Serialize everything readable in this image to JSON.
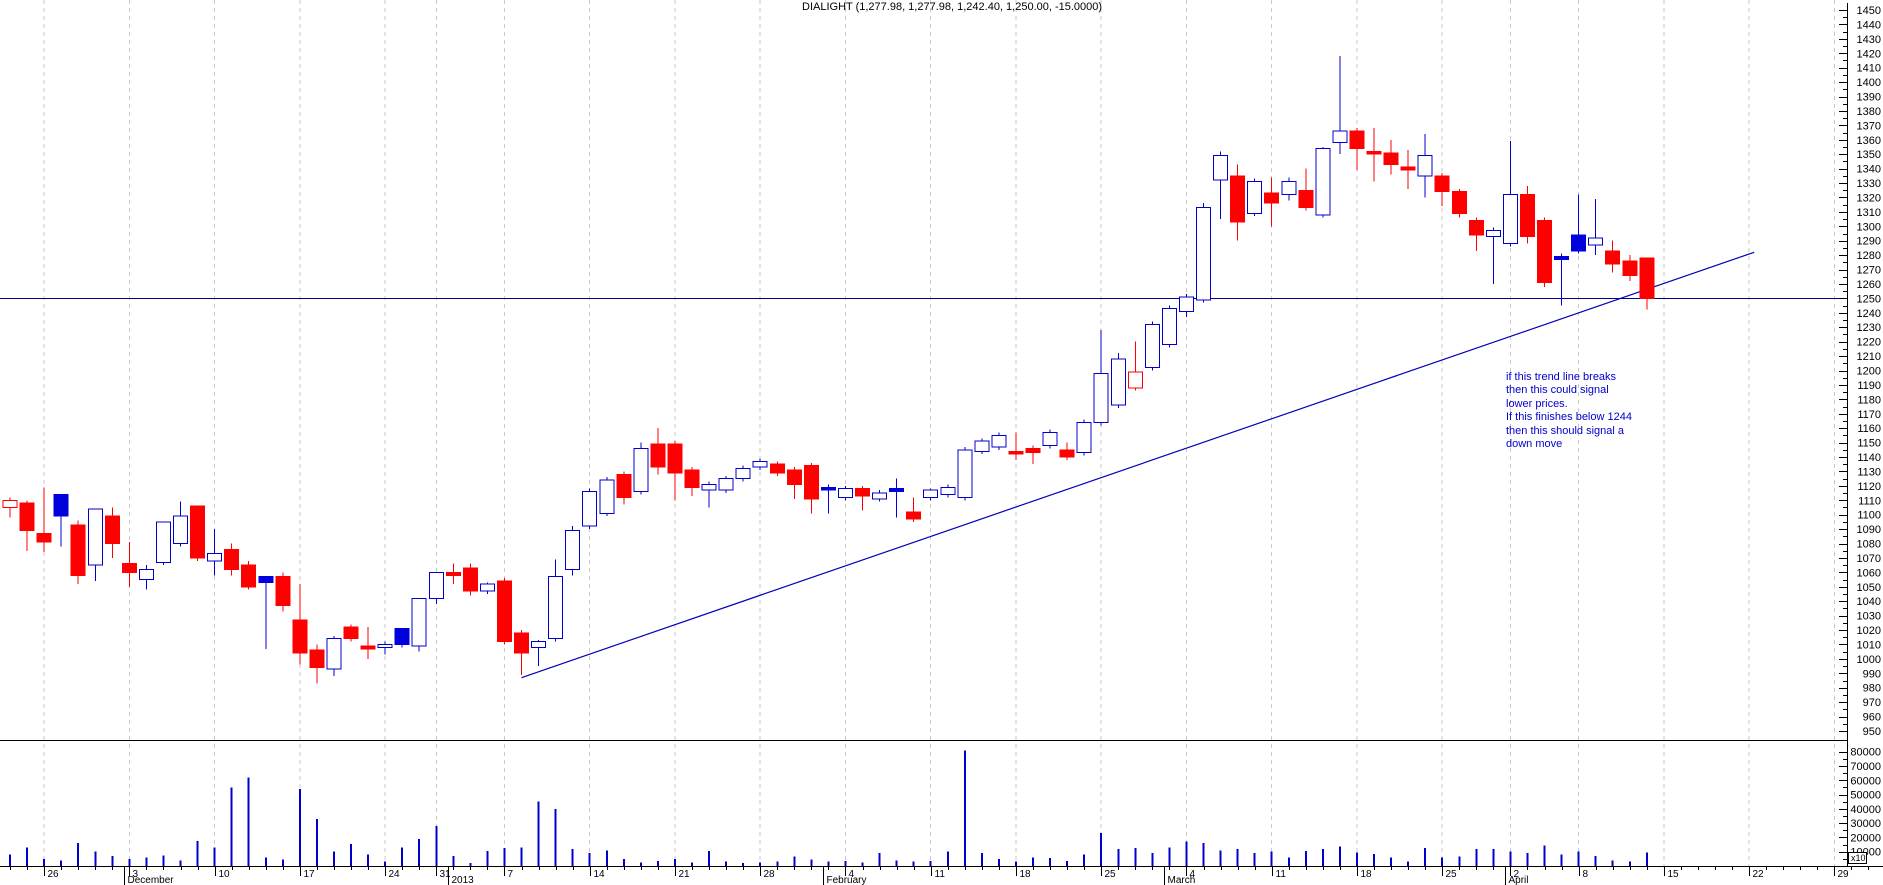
{
  "window": {
    "title": "DIALIGHT (1,277.98, 1,277.98, 1,242.40, 1,250.00, -15.0000)"
  },
  "annotation": {
    "color": "#0000cc",
    "lines": [
      "if this trend line breaks",
      "then this could signal",
      "lower prices.",
      "If this finishes below 1244",
      "then this should signal a",
      "down move"
    ]
  },
  "chart_data": {
    "type": "candlestick",
    "instrument": "DIALIGHT",
    "quote": {
      "open": "1,277.98",
      "high": "1,277.98",
      "low": "1,242.40",
      "close": "1,250.00",
      "change": "-15.0000"
    },
    "price_axis": {
      "min": 950,
      "max": 1450,
      "label_step": 10,
      "minor_step": 5
    },
    "volume_axis": {
      "min": 10000,
      "max": 80000,
      "label_step": 10000,
      "multiplier_label": "x10"
    },
    "horizontal_line": {
      "price": 1250
    },
    "trend_line": {
      "from": {
        "index": 30,
        "price": 987
      },
      "to": {
        "index": 102.3,
        "price": 1282
      }
    },
    "colors": {
      "up": "#0000cc",
      "down": "#ff0000",
      "blue_fill": "#0000dd",
      "grid": "#c9c9c9",
      "hline": "#000090",
      "trend": "#0000bb",
      "volume_bar": "#0000cc",
      "axis": "#000000",
      "annotation": "#0000cc"
    },
    "candle_fields": [
      "date",
      "open",
      "high",
      "low",
      "close",
      "style",
      "volume"
    ],
    "candle_styles": {
      "u": "up-hollow-blue",
      "d": "down-solid-red",
      "b": "solid-blue",
      "rh": "hollow-red"
    },
    "candles": [
      [
        "2012-11-22",
        1110,
        1112,
        1098,
        1105,
        "rh",
        8000
      ],
      [
        "2012-11-23",
        1108,
        1110,
        1075,
        1089,
        "d",
        13000
      ],
      [
        "2012-11-26",
        1087,
        1119,
        1074,
        1081,
        "d",
        5000
      ],
      [
        "2012-11-27",
        1099,
        1114,
        1078,
        1114,
        "b",
        4000
      ],
      [
        "2012-11-28",
        1093,
        1096,
        1052,
        1058,
        "d",
        16000
      ],
      [
        "2012-11-29",
        1065,
        1104,
        1054,
        1104,
        "u",
        10000
      ],
      [
        "2012-11-30",
        1099,
        1105,
        1070,
        1080,
        "d",
        7000
      ],
      [
        "2012-12-03",
        1066,
        1081,
        1050,
        1060,
        "d",
        5000
      ],
      [
        "2012-12-04",
        1055,
        1065,
        1048,
        1062,
        "u",
        6000
      ],
      [
        "2012-12-05",
        1067,
        1095,
        1065,
        1095,
        "u",
        7500
      ],
      [
        "2012-12-06",
        1080,
        1109,
        1078,
        1099,
        "u",
        4000
      ],
      [
        "2012-12-07",
        1106,
        1106,
        1068,
        1070,
        "d",
        17500
      ],
      [
        "2012-12-10",
        1068,
        1090,
        1058,
        1073,
        "u",
        13000
      ],
      [
        "2012-12-11",
        1076,
        1080,
        1058,
        1062,
        "d",
        55000
      ],
      [
        "2012-12-12",
        1065,
        1068,
        1048,
        1050,
        "d",
        62000
      ],
      [
        "2012-12-13",
        1053,
        1057,
        1007,
        1057,
        "b",
        6000
      ],
      [
        "2012-12-14",
        1057,
        1060,
        1033,
        1037,
        "d",
        4500
      ],
      [
        "2012-12-17",
        1027,
        1052,
        996,
        1004,
        "d",
        54000
      ],
      [
        "2012-12-18",
        1006,
        1010,
        983,
        994,
        "d",
        33000
      ],
      [
        "2012-12-19",
        993,
        1016,
        988,
        1014,
        "u",
        10000
      ],
      [
        "2012-12-20",
        1022,
        1024,
        1012,
        1014,
        "d",
        15500
      ],
      [
        "2012-12-21",
        1009,
        1022,
        1000,
        1007,
        "d",
        8000
      ],
      [
        "2012-12-24",
        1008,
        1012,
        1003,
        1010,
        "u",
        3000
      ],
      [
        "2012-12-27",
        1010,
        1021,
        1008,
        1021,
        "b",
        13000
      ],
      [
        "2012-12-28",
        1009,
        1042,
        1005,
        1042,
        "u",
        19000
      ],
      [
        "2012-12-31",
        1042,
        1060,
        1038,
        1060,
        "u",
        28000
      ],
      [
        "2013-01-02",
        1060,
        1066,
        1052,
        1058,
        "d",
        7000
      ],
      [
        "2013-01-03",
        1063,
        1066,
        1044,
        1047,
        "d",
        2000
      ],
      [
        "2013-01-04",
        1047,
        1053,
        1045,
        1052,
        "u",
        10500
      ],
      [
        "2013-01-07",
        1054,
        1056,
        1010,
        1012,
        "d",
        12500
      ],
      [
        "2013-01-08",
        1018,
        1020,
        989,
        1004,
        "d",
        13000
      ],
      [
        "2013-01-09",
        1008,
        1013,
        995,
        1012,
        "u",
        45000
      ],
      [
        "2013-01-10",
        1014,
        1069,
        1012,
        1057,
        "u",
        40000
      ],
      [
        "2013-01-11",
        1062,
        1092,
        1058,
        1089,
        "u",
        12000
      ],
      [
        "2013-01-14",
        1092,
        1118,
        1090,
        1116,
        "u",
        9000
      ],
      [
        "2013-01-15",
        1101,
        1126,
        1099,
        1124,
        "u",
        11000
      ],
      [
        "2013-01-16",
        1128,
        1130,
        1107,
        1112,
        "d",
        5000
      ],
      [
        "2013-01-17",
        1116,
        1150,
        1114,
        1146,
        "u",
        2500
      ],
      [
        "2013-01-18",
        1149,
        1160,
        1128,
        1133,
        "d",
        3500
      ],
      [
        "2013-01-21",
        1149,
        1151,
        1110,
        1129,
        "d",
        5000
      ],
      [
        "2013-01-22",
        1131,
        1133,
        1113,
        1119,
        "d",
        2500
      ],
      [
        "2013-01-23",
        1117,
        1123,
        1105,
        1121,
        "u",
        10500
      ],
      [
        "2013-01-24",
        1117,
        1127,
        1115,
        1125,
        "u",
        3000
      ],
      [
        "2013-01-25",
        1125,
        1134,
        1123,
        1132,
        "u",
        2000
      ],
      [
        "2013-01-28",
        1133,
        1139,
        1131,
        1137,
        "u",
        2500
      ],
      [
        "2013-01-29",
        1135,
        1137,
        1127,
        1129,
        "d",
        3000
      ],
      [
        "2013-01-30",
        1131,
        1133,
        1111,
        1121,
        "d",
        6500
      ],
      [
        "2013-01-31",
        1134,
        1136,
        1101,
        1111,
        "d",
        4500
      ],
      [
        "2013-02-01",
        1119,
        1121,
        1101,
        1117,
        "b",
        3000
      ],
      [
        "2013-02-04",
        1112,
        1120,
        1110,
        1118,
        "u",
        3500
      ],
      [
        "2013-02-05",
        1118,
        1120,
        1103,
        1113,
        "d",
        2500
      ],
      [
        "2013-02-06",
        1111,
        1117,
        1109,
        1115,
        "u",
        9000
      ],
      [
        "2013-02-07",
        1118,
        1125,
        1098,
        1116,
        "b",
        4000
      ],
      [
        "2013-02-08",
        1102,
        1112,
        1095,
        1097,
        "d",
        3000
      ],
      [
        "2013-02-11",
        1112,
        1118,
        1110,
        1117,
        "u",
        3500
      ],
      [
        "2013-02-12",
        1114,
        1121,
        1112,
        1119,
        "u",
        10000
      ],
      [
        "2013-02-13",
        1112,
        1147,
        1110,
        1145,
        "u",
        81000
      ],
      [
        "2013-02-14",
        1144,
        1153,
        1142,
        1151,
        "u",
        9000
      ],
      [
        "2013-02-15",
        1147,
        1157,
        1145,
        1155,
        "u",
        5000
      ],
      [
        "2013-02-18",
        1144,
        1157,
        1138,
        1142,
        "d",
        3000
      ],
      [
        "2013-02-19",
        1146,
        1148,
        1135,
        1143,
        "d",
        6000
      ],
      [
        "2013-02-20",
        1148,
        1159,
        1146,
        1157,
        "u",
        5500
      ],
      [
        "2013-02-21",
        1145,
        1150,
        1138,
        1140,
        "d",
        3500
      ],
      [
        "2013-02-22",
        1143,
        1166,
        1141,
        1164,
        "u",
        8000
      ],
      [
        "2013-02-25",
        1164,
        1228,
        1162,
        1198,
        "u",
        23000
      ],
      [
        "2013-02-26",
        1176,
        1212,
        1174,
        1208,
        "u",
        12000
      ],
      [
        "2013-02-27",
        1199,
        1220,
        1186,
        1188,
        "rh",
        12500
      ],
      [
        "2013-02-28",
        1202,
        1234,
        1200,
        1232,
        "u",
        9000
      ],
      [
        "2013-03-01",
        1218,
        1245,
        1216,
        1243,
        "u",
        13000
      ],
      [
        "2013-03-04",
        1241,
        1253,
        1237,
        1251,
        "u",
        17000
      ],
      [
        "2013-03-05",
        1249,
        1316,
        1247,
        1313,
        "u",
        16000
      ],
      [
        "2013-03-06",
        1332,
        1352,
        1305,
        1349,
        "u",
        11000
      ],
      [
        "2013-03-07",
        1335,
        1343,
        1290,
        1303,
        "d",
        12000
      ],
      [
        "2013-03-08",
        1309,
        1333,
        1307,
        1331,
        "u",
        9000
      ],
      [
        "2013-03-11",
        1323,
        1334,
        1300,
        1316,
        "d",
        10000
      ],
      [
        "2013-03-12",
        1322,
        1334,
        1318,
        1331,
        "u",
        6000
      ],
      [
        "2013-03-13",
        1325,
        1340,
        1311,
        1313,
        "d",
        10500
      ],
      [
        "2013-03-14",
        1308,
        1355,
        1306,
        1354,
        "u",
        12000
      ],
      [
        "2013-03-15",
        1358,
        1418,
        1350,
        1366,
        "u",
        13500
      ],
      [
        "2013-03-18",
        1366,
        1368,
        1339,
        1354,
        "d",
        9500
      ],
      [
        "2013-03-19",
        1352,
        1368,
        1331,
        1350,
        "d",
        8500
      ],
      [
        "2013-03-20",
        1351,
        1360,
        1336,
        1343,
        "d",
        6000
      ],
      [
        "2013-03-21",
        1341,
        1353,
        1326,
        1339,
        "d",
        3000
      ],
      [
        "2013-03-22",
        1335,
        1364,
        1320,
        1349,
        "u",
        12500
      ],
      [
        "2013-03-25",
        1335,
        1337,
        1314,
        1324,
        "d",
        6000
      ],
      [
        "2013-03-26",
        1324,
        1326,
        1306,
        1309,
        "d",
        6500
      ],
      [
        "2013-03-27",
        1304,
        1306,
        1283,
        1294,
        "d",
        12000
      ],
      [
        "2013-03-28",
        1293,
        1299,
        1260,
        1297,
        "u",
        12000
      ],
      [
        "2013-04-02",
        1288,
        1359,
        1286,
        1322,
        "u",
        10000
      ],
      [
        "2013-04-03",
        1322,
        1328,
        1288,
        1293,
        "d",
        9000
      ],
      [
        "2013-04-04",
        1304,
        1306,
        1258,
        1261,
        "d",
        14500
      ],
      [
        "2013-04-05",
        1279,
        1281,
        1245,
        1277,
        "b",
        8000
      ],
      [
        "2013-04-08",
        1283,
        1322,
        1281,
        1294,
        "b",
        10000
      ],
      [
        "2013-04-09",
        1287,
        1319,
        1280,
        1292,
        "u",
        7000
      ],
      [
        "2013-04-10",
        1283,
        1290,
        1268,
        1274,
        "d",
        4000
      ],
      [
        "2013-04-11",
        1276,
        1280,
        1262,
        1266,
        "d",
        3000
      ],
      [
        "2013-04-12",
        1277.98,
        1277.98,
        1242.4,
        1250,
        "d",
        9500
      ]
    ],
    "week_ticks": [
      {
        "label": "26",
        "index": 2
      },
      {
        "label": "3",
        "index": 7
      },
      {
        "label": "10",
        "index": 12
      },
      {
        "label": "17",
        "index": 17
      },
      {
        "label": "24",
        "index": 22
      },
      {
        "label": "31",
        "index": 25
      },
      {
        "label": "7",
        "index": 29
      },
      {
        "label": "14",
        "index": 34
      },
      {
        "label": "21",
        "index": 39
      },
      {
        "label": "28",
        "index": 44
      },
      {
        "label": "4",
        "index": 49
      },
      {
        "label": "11",
        "index": 54
      },
      {
        "label": "18",
        "index": 59
      },
      {
        "label": "25",
        "index": 64
      },
      {
        "label": "4",
        "index": 69
      },
      {
        "label": "11",
        "index": 74
      },
      {
        "label": "18",
        "index": 79
      },
      {
        "label": "25",
        "index": 84
      },
      {
        "label": "2",
        "index": 88
      },
      {
        "label": "8",
        "index": 92
      },
      {
        "label": "15",
        "index": 97
      },
      {
        "label": "22",
        "index": 102
      },
      {
        "label": "29",
        "index": 107
      }
    ],
    "month_labels": [
      {
        "label": "December",
        "index": 7
      },
      {
        "label": "2013",
        "index": 26
      },
      {
        "label": "February",
        "index": 48
      },
      {
        "label": "March",
        "index": 68
      },
      {
        "label": "April",
        "index": 88
      }
    ]
  }
}
